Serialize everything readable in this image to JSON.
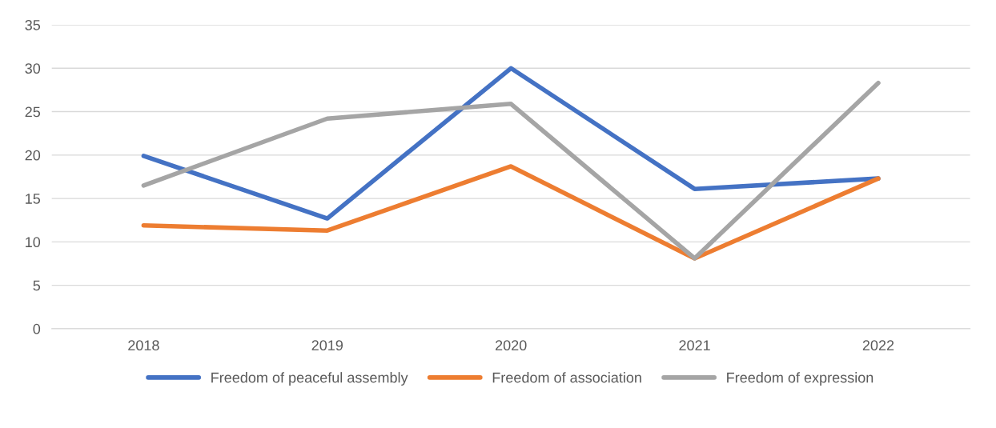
{
  "chart_data": {
    "type": "line",
    "categories": [
      "2018",
      "2019",
      "2020",
      "2021",
      "2022"
    ],
    "series": [
      {
        "name": "Freedom of peaceful assembly",
        "color": "#4472c4",
        "values": [
          19.9,
          12.7,
          30.0,
          16.1,
          17.3
        ]
      },
      {
        "name": "Freedom of association",
        "color": "#ed7d31",
        "values": [
          11.9,
          11.3,
          18.7,
          8.1,
          17.3
        ]
      },
      {
        "name": "Freedom of expression",
        "color": "#a5a5a5",
        "values": [
          16.5,
          24.2,
          25.9,
          8.1,
          28.3
        ]
      }
    ],
    "ylim": [
      0,
      35
    ],
    "yticks": [
      0,
      5,
      10,
      15,
      20,
      25,
      30,
      35
    ],
    "grid": "y",
    "legend": "bottom",
    "marker": "none",
    "line_style": "solid"
  }
}
